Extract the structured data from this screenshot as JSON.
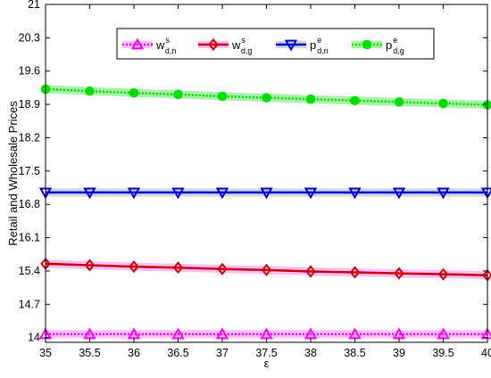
{
  "chart_data": {
    "type": "line",
    "xlabel": "ε",
    "ylabel": "Retail and Wholesale Prices",
    "xlim": [
      35,
      40
    ],
    "ylim": [
      13.9,
      21
    ],
    "x": [
      35,
      35.5,
      36,
      36.5,
      37,
      37.5,
      38,
      38.5,
      39,
      39.5,
      40
    ],
    "xticks": [
      "35",
      "35.5",
      "36",
      "36.5",
      "37",
      "37.5",
      "38",
      "38.5",
      "39",
      "39.5",
      "40"
    ],
    "yticks": [
      "14",
      "14.7",
      "15.4",
      "16.1",
      "16.8",
      "17.5",
      "18.2",
      "18.9",
      "19.6",
      "20.3",
      "21"
    ],
    "grid": false,
    "legend_position": "top-center",
    "series": [
      {
        "name": "w",
        "sup": "s",
        "sub": "d,n",
        "color": "#ff00ff",
        "band": "#ffb3ff",
        "dash": "dotted",
        "marker": "triangle-up",
        "values": [
          14.07,
          14.07,
          14.07,
          14.07,
          14.07,
          14.07,
          14.07,
          14.07,
          14.07,
          14.07,
          14.07
        ]
      },
      {
        "name": "w",
        "sup": "s",
        "sub": "d,g",
        "color": "#cc0000",
        "band": "#ffb3ff",
        "dash": "solid",
        "marker": "diamond",
        "values": [
          15.55,
          15.52,
          15.49,
          15.47,
          15.44,
          15.42,
          15.39,
          15.37,
          15.35,
          15.33,
          15.31
        ]
      },
      {
        "name": "p",
        "sup": "e",
        "sub": "d,n",
        "color": "#0000cc",
        "band": "#c8cfe6",
        "dash": "solid",
        "marker": "triangle-down",
        "values": [
          17.05,
          17.05,
          17.05,
          17.05,
          17.05,
          17.05,
          17.05,
          17.05,
          17.05,
          17.05,
          17.05
        ]
      },
      {
        "name": "p",
        "sup": "e",
        "sub": "d,g",
        "color": "#00dd00",
        "band": "#00dd00",
        "dash": "dotted",
        "marker": "circle",
        "values": [
          19.22,
          19.18,
          19.14,
          19.11,
          19.07,
          19.04,
          19.01,
          18.98,
          18.95,
          18.92,
          18.89
        ]
      }
    ]
  }
}
